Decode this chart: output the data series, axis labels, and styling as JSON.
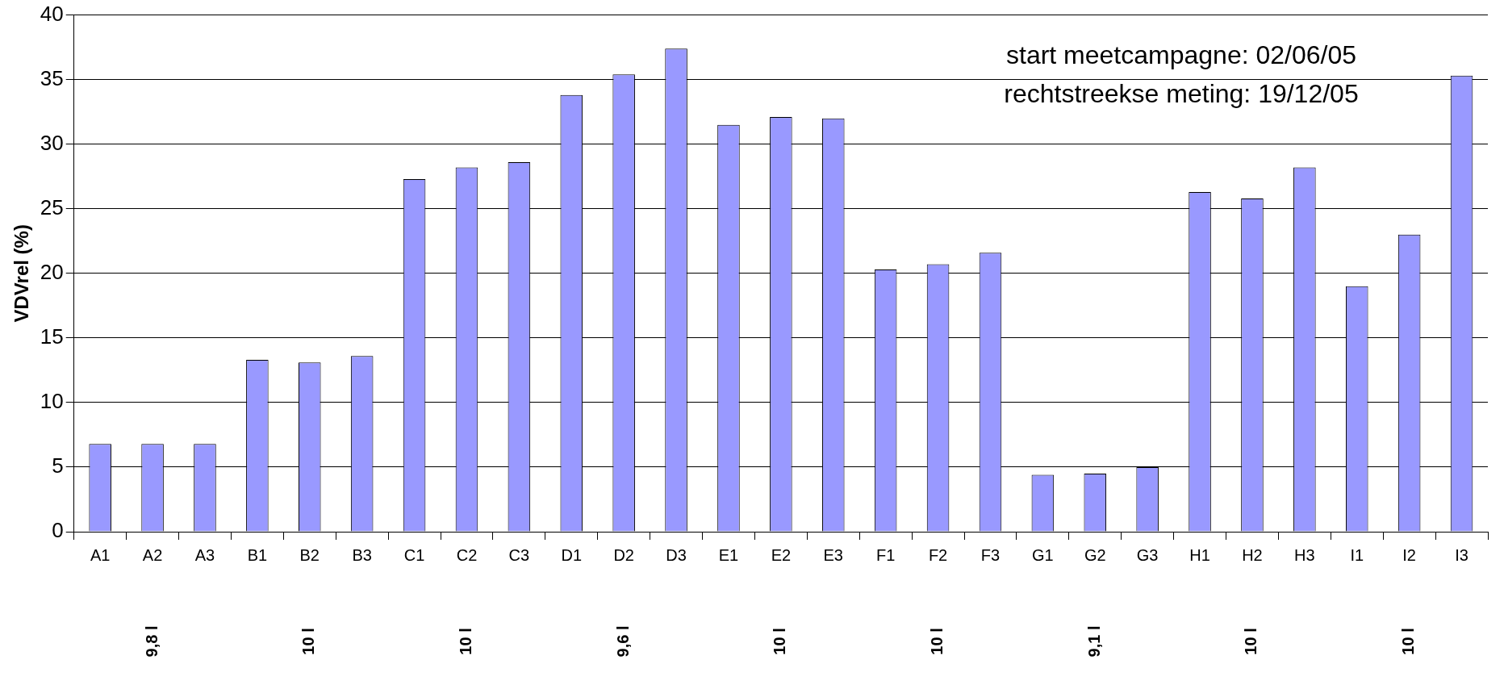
{
  "chart_data": {
    "type": "bar",
    "ylabel": "VDVrel (%)",
    "categories": [
      "A1",
      "A2",
      "A3",
      "B1",
      "B2",
      "B3",
      "C1",
      "C2",
      "C3",
      "D1",
      "D2",
      "D3",
      "E1",
      "E2",
      "E3",
      "F1",
      "F2",
      "F3",
      "G1",
      "G2",
      "G3",
      "H1",
      "H2",
      "H3",
      "I1",
      "I2",
      "I3"
    ],
    "values": [
      6.8,
      6.8,
      6.8,
      13.3,
      13.1,
      13.6,
      27.3,
      28.2,
      28.6,
      33.8,
      35.4,
      37.4,
      31.5,
      32.1,
      32.0,
      20.3,
      20.7,
      21.6,
      4.4,
      4.5,
      5.0,
      26.3,
      25.8,
      28.2,
      19.0,
      23.0,
      35.3
    ],
    "color": "#9999ff",
    "ylim": [
      0,
      40
    ],
    "yticks": [
      0,
      5,
      10,
      15,
      20,
      25,
      30,
      35,
      40
    ],
    "grid": "y",
    "annotations": [
      "start meetcampagne: 02/06/05",
      "rechtstreekse meting: 19/12/05",
      "9,8 l",
      "10 l",
      "10 l",
      "9,6 l",
      "10 l",
      "10 l",
      "9,1 l",
      "10 l",
      "10 l"
    ]
  }
}
